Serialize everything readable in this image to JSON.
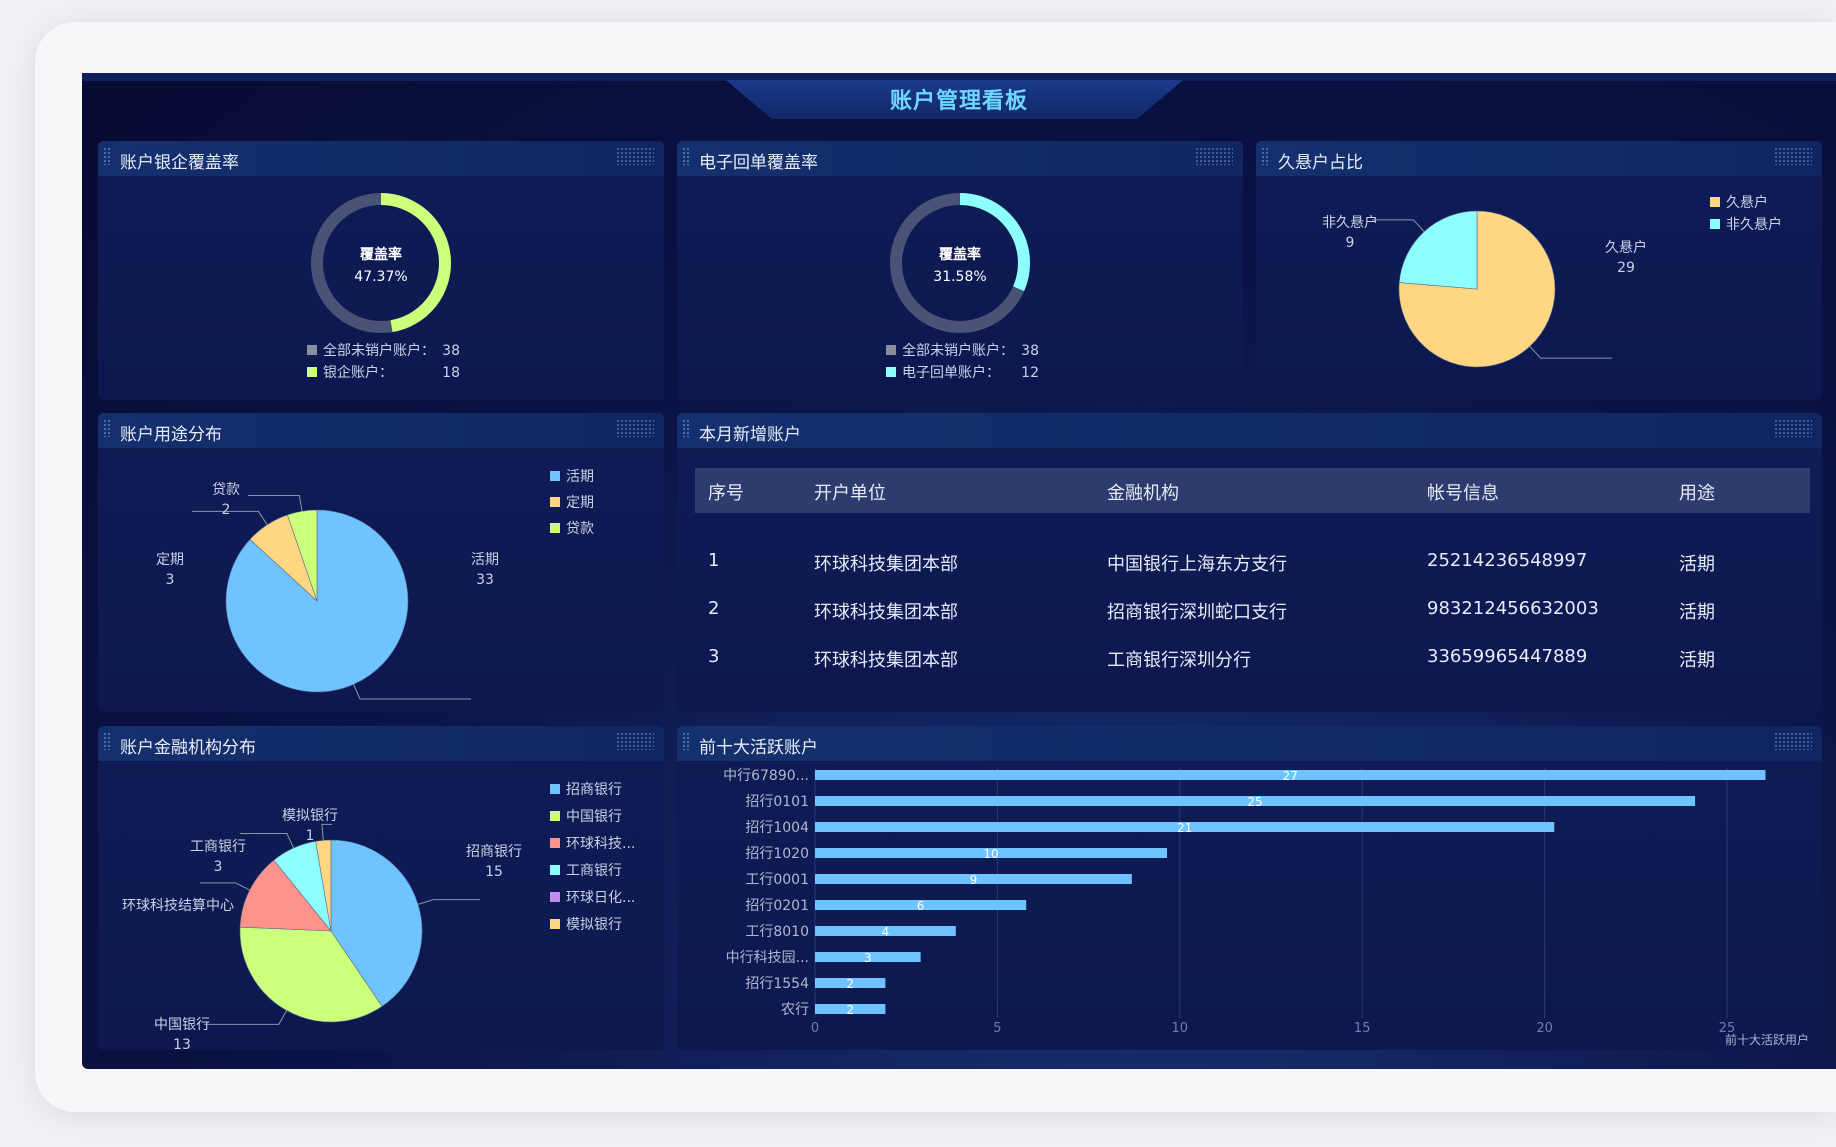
{
  "dashboard_title": "账户管理看板",
  "colors": {
    "blue": "#6fc3ff",
    "green": "#ccff7a",
    "yellow": "#ffd682",
    "cyan": "#8effff",
    "red": "#ff928a",
    "purple": "#c48cf0",
    "track": "#4a5275"
  },
  "panels": {
    "bank_coverage": {
      "title": "账户银企覆盖率",
      "center_label": "覆盖率",
      "center_value": "47.37%",
      "legend": [
        {
          "label": "全部未销户账户：",
          "value": "38",
          "color": "#8a8fa0"
        },
        {
          "label": "银企账户：",
          "value": "18",
          "color": "#ccff7a"
        }
      ]
    },
    "receipt_coverage": {
      "title": "电子回单覆盖率",
      "center_label": "覆盖率",
      "center_value": "31.58%",
      "legend": [
        {
          "label": "全部未销户账户：",
          "value": "38",
          "color": "#8a8fa0"
        },
        {
          "label": "电子回单账户：",
          "value": "12",
          "color": "#8effff"
        }
      ]
    },
    "dormant": {
      "title": "久悬户占比"
    },
    "usage": {
      "title": "账户用途分布"
    },
    "new_accounts": {
      "title": "本月新增账户",
      "columns": [
        "序号",
        "开户单位",
        "金融机构",
        "帐号信息",
        "用途"
      ],
      "rows": [
        [
          "1",
          "环球科技集团本部",
          "中国银行上海东方支行",
          "25214236548997",
          "活期"
        ],
        [
          "2",
          "环球科技集团本部",
          "招商银行深圳蛇口支行",
          "983212456632003",
          "活期"
        ],
        [
          "3",
          "环球科技集团本部",
          "工商银行深圳分行",
          "33659965447889",
          "活期"
        ]
      ]
    },
    "institutions": {
      "title": "账户金融机构分布"
    },
    "top10": {
      "title": "前十大活跃账户"
    }
  },
  "chart_data": [
    {
      "id": "bank_coverage",
      "type": "pie",
      "variant": "donut",
      "values": [
        18,
        20
      ],
      "colors": [
        "#ccff7a",
        "#4a5275"
      ],
      "percent": 47.37
    },
    {
      "id": "receipt_coverage",
      "type": "pie",
      "variant": "donut",
      "values": [
        12,
        26
      ],
      "colors": [
        "#8effff",
        "#4a5275"
      ],
      "percent": 31.58
    },
    {
      "id": "dormant",
      "type": "pie",
      "legend_position": "top-right",
      "slices": [
        {
          "name": "久悬户",
          "value": 29,
          "color": "#ffd682",
          "label": "久悬户",
          "shown": "29"
        },
        {
          "name": "非久悬户",
          "value": 9,
          "color": "#8effff",
          "label": "非久悬户",
          "shown": "9"
        }
      ],
      "legend": [
        "久悬户",
        "非久悬户"
      ]
    },
    {
      "id": "usage",
      "type": "pie",
      "legend_position": "top-right",
      "slices": [
        {
          "name": "活期",
          "value": 33,
          "color": "#6fc3ff",
          "label": "活期",
          "shown": "33"
        },
        {
          "name": "定期",
          "value": 3,
          "color": "#ffd682",
          "label": "定期",
          "shown": "3"
        },
        {
          "name": "贷款",
          "value": 2,
          "color": "#ccff7a",
          "label": "贷款",
          "shown": "2"
        }
      ],
      "legend": [
        "活期",
        "定期",
        "贷款"
      ]
    },
    {
      "id": "institutions",
      "type": "pie",
      "legend_position": "top-right",
      "slices": [
        {
          "name": "招商银行",
          "value": 15,
          "color": "#6fc3ff",
          "label": "招商银行",
          "shown": "15"
        },
        {
          "name": "中国银行",
          "value": 13,
          "color": "#ccff7a",
          "label": "中国银行",
          "shown": "13"
        },
        {
          "name": "环球科技结算中心",
          "value": 5,
          "color": "#ff928a",
          "label": "环球科技结算中心",
          "shown": ""
        },
        {
          "name": "工商银行",
          "value": 3,
          "color": "#8effff",
          "label": "工商银行",
          "shown": "3"
        },
        {
          "name": "环球日化",
          "value": 0,
          "color": "#c48cf0",
          "label": "",
          "shown": ""
        },
        {
          "name": "模拟银行",
          "value": 1,
          "color": "#ffd682",
          "label": "模拟银行",
          "shown": "1"
        }
      ],
      "legend": [
        "招商银行",
        "中国银行",
        "环球科技...",
        "工商银行",
        "环球日化...",
        "模拟银行"
      ],
      "legend_colors": [
        "#6fc3ff",
        "#ccff7a",
        "#ff928a",
        "#8effff",
        "#c48cf0",
        "#ffd682"
      ]
    },
    {
      "id": "top10",
      "type": "bar",
      "orientation": "horizontal",
      "bar_color": "#6fc3ff",
      "categories": [
        "中行67890...",
        "招行0101",
        "招行1004",
        "招行1020",
        "工行0001",
        "招行0201",
        "工行8010",
        "中行科技园...",
        "招行1554",
        "农行"
      ],
      "values": [
        27,
        25,
        21,
        10,
        9,
        6,
        4,
        3,
        2,
        2
      ],
      "xticks": [
        0,
        5,
        10,
        15,
        20,
        25
      ],
      "xlim": [
        0,
        25
      ],
      "xlabel": "前十大活跃用户",
      "grid": true
    }
  ]
}
